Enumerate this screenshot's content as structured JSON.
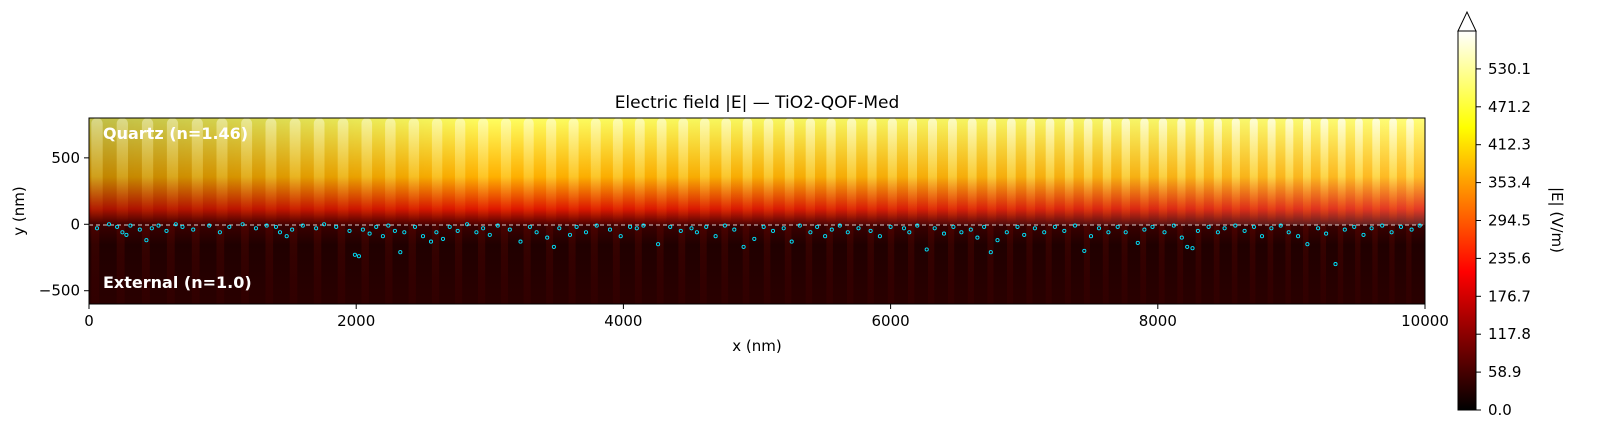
{
  "chart_data": {
    "type": "heatmap",
    "title": "Electric field |E| — TiO2-QOF-Med",
    "xlabel": "x (nm)",
    "ylabel": "y (nm)",
    "xlim": [
      0,
      10000
    ],
    "ylim": [
      -600,
      800
    ],
    "x_ticks": [
      0,
      2000,
      4000,
      6000,
      8000,
      10000
    ],
    "x_tick_labels": [
      "0",
      "2000",
      "4000",
      "6000",
      "8000",
      "10000"
    ],
    "y_ticks": [
      500,
      0,
      -500
    ],
    "y_tick_labels": [
      "500",
      "0",
      "−500"
    ],
    "interface_y": 0,
    "regions": [
      {
        "label": "Quartz (n=1.46)",
        "y_range": [
          0,
          800
        ]
      },
      {
        "label": "External (n=1.0)",
        "y_range": [
          -600,
          0
        ]
      }
    ],
    "colorbar": {
      "label": "|E| (V/m)",
      "colormap": "hot",
      "min": 0.0,
      "max": 589.0,
      "extend": "max",
      "ticks": [
        0.0,
        58.9,
        117.8,
        176.7,
        235.6,
        294.5,
        353.4,
        412.3,
        471.2,
        530.1
      ],
      "tick_labels": [
        "0.0",
        "58.9",
        "117.8",
        "176.7",
        "235.6",
        "294.5",
        "353.4",
        "412.3",
        "471.2",
        "530.1"
      ]
    },
    "field_pattern": {
      "fringe_count": 66,
      "fringe_pitch_start_nm": 190,
      "fringe_pitch_end_nm": 125,
      "peak_E_quartz": 560,
      "mean_E_external": 30
    },
    "particles": {
      "color": "#00e5ff",
      "points": [
        [
          60,
          -30
        ],
        [
          150,
          0
        ],
        [
          210,
          -20
        ],
        [
          250,
          -60
        ],
        [
          280,
          -80
        ],
        [
          310,
          -10
        ],
        [
          380,
          -40
        ],
        [
          430,
          -120
        ],
        [
          470,
          -30
        ],
        [
          520,
          -10
        ],
        [
          580,
          -50
        ],
        [
          650,
          0
        ],
        [
          700,
          -20
        ],
        [
          780,
          -40
        ],
        [
          900,
          -10
        ],
        [
          980,
          -60
        ],
        [
          1050,
          -20
        ],
        [
          1150,
          0
        ],
        [
          1250,
          -30
        ],
        [
          1330,
          -10
        ],
        [
          1400,
          -20
        ],
        [
          1430,
          -60
        ],
        [
          1480,
          -90
        ],
        [
          1520,
          -40
        ],
        [
          1600,
          -10
        ],
        [
          1700,
          -30
        ],
        [
          1760,
          0
        ],
        [
          1850,
          -20
        ],
        [
          1950,
          -50
        ],
        [
          1990,
          -230
        ],
        [
          2020,
          -240
        ],
        [
          2050,
          -40
        ],
        [
          2100,
          -70
        ],
        [
          2150,
          -20
        ],
        [
          2200,
          -90
        ],
        [
          2240,
          -10
        ],
        [
          2290,
          -50
        ],
        [
          2330,
          -210
        ],
        [
          2360,
          -60
        ],
        [
          2440,
          -20
        ],
        [
          2500,
          -90
        ],
        [
          2560,
          -130
        ],
        [
          2600,
          -60
        ],
        [
          2650,
          -110
        ],
        [
          2700,
          -20
        ],
        [
          2760,
          -50
        ],
        [
          2830,
          0
        ],
        [
          2900,
          -60
        ],
        [
          2950,
          -30
        ],
        [
          3000,
          -80
        ],
        [
          3060,
          -10
        ],
        [
          3150,
          -40
        ],
        [
          3230,
          -130
        ],
        [
          3300,
          -20
        ],
        [
          3350,
          -60
        ],
        [
          3430,
          -100
        ],
        [
          3480,
          -170
        ],
        [
          3520,
          -30
        ],
        [
          3600,
          -80
        ],
        [
          3650,
          -20
        ],
        [
          3720,
          -60
        ],
        [
          3800,
          -10
        ],
        [
          3900,
          -40
        ],
        [
          3980,
          -90
        ],
        [
          4050,
          -20
        ],
        [
          4100,
          -30
        ],
        [
          4150,
          -10
        ],
        [
          4260,
          -150
        ],
        [
          4350,
          -20
        ],
        [
          4430,
          -50
        ],
        [
          4510,
          -30
        ],
        [
          4550,
          -60
        ],
        [
          4620,
          -20
        ],
        [
          4690,
          -90
        ],
        [
          4760,
          -10
        ],
        [
          4830,
          -40
        ],
        [
          4900,
          -170
        ],
        [
          4980,
          -110
        ],
        [
          5050,
          -20
        ],
        [
          5120,
          -50
        ],
        [
          5200,
          -30
        ],
        [
          5260,
          -130
        ],
        [
          5320,
          -10
        ],
        [
          5400,
          -60
        ],
        [
          5450,
          -20
        ],
        [
          5510,
          -90
        ],
        [
          5560,
          -40
        ],
        [
          5620,
          -10
        ],
        [
          5680,
          -60
        ],
        [
          5760,
          -30
        ],
        [
          5850,
          -50
        ],
        [
          5920,
          -90
        ],
        [
          6000,
          -20
        ],
        [
          6100,
          -30
        ],
        [
          6140,
          -60
        ],
        [
          6200,
          -10
        ],
        [
          6270,
          -190
        ],
        [
          6330,
          -30
        ],
        [
          6400,
          -70
        ],
        [
          6470,
          -20
        ],
        [
          6530,
          -60
        ],
        [
          6600,
          -40
        ],
        [
          6650,
          -100
        ],
        [
          6700,
          -20
        ],
        [
          6750,
          -210
        ],
        [
          6800,
          -120
        ],
        [
          6870,
          -60
        ],
        [
          6950,
          -20
        ],
        [
          7000,
          -80
        ],
        [
          7080,
          -30
        ],
        [
          7150,
          -60
        ],
        [
          7230,
          -20
        ],
        [
          7300,
          -50
        ],
        [
          7380,
          -10
        ],
        [
          7450,
          -200
        ],
        [
          7500,
          -90
        ],
        [
          7560,
          -30
        ],
        [
          7630,
          -60
        ],
        [
          7700,
          -20
        ],
        [
          7760,
          -60
        ],
        [
          7850,
          -140
        ],
        [
          7900,
          -40
        ],
        [
          7960,
          -20
        ],
        [
          8050,
          -60
        ],
        [
          8120,
          -10
        ],
        [
          8180,
          -100
        ],
        [
          8220,
          -170
        ],
        [
          8260,
          -180
        ],
        [
          8300,
          -50
        ],
        [
          8380,
          -20
        ],
        [
          8450,
          -60
        ],
        [
          8500,
          -30
        ],
        [
          8580,
          -10
        ],
        [
          8650,
          -50
        ],
        [
          8720,
          -20
        ],
        [
          8780,
          -90
        ],
        [
          8850,
          -30
        ],
        [
          8920,
          -10
        ],
        [
          8980,
          -60
        ],
        [
          9050,
          -90
        ],
        [
          9120,
          -150
        ],
        [
          9200,
          -30
        ],
        [
          9260,
          -70
        ],
        [
          9330,
          -300
        ],
        [
          9400,
          -40
        ],
        [
          9470,
          -20
        ],
        [
          9540,
          -80
        ],
        [
          9600,
          -30
        ],
        [
          9680,
          -10
        ],
        [
          9750,
          -60
        ],
        [
          9820,
          -20
        ],
        [
          9900,
          -40
        ],
        [
          9960,
          -10
        ]
      ]
    }
  }
}
